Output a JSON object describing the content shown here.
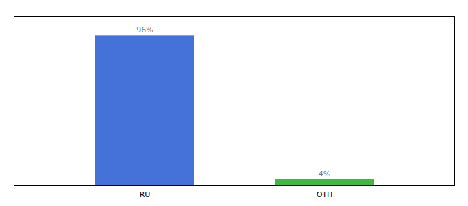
{
  "chart_data": {
    "type": "bar",
    "categories": [
      "RU",
      "OTH"
    ],
    "values": [
      96,
      4
    ],
    "value_labels": [
      "96%",
      "4%"
    ],
    "colors": [
      "#4472d9",
      "#3dbb3d"
    ],
    "ylim": [
      0,
      108
    ],
    "data_labels": true,
    "tick_labels": "x",
    "grid": false
  }
}
